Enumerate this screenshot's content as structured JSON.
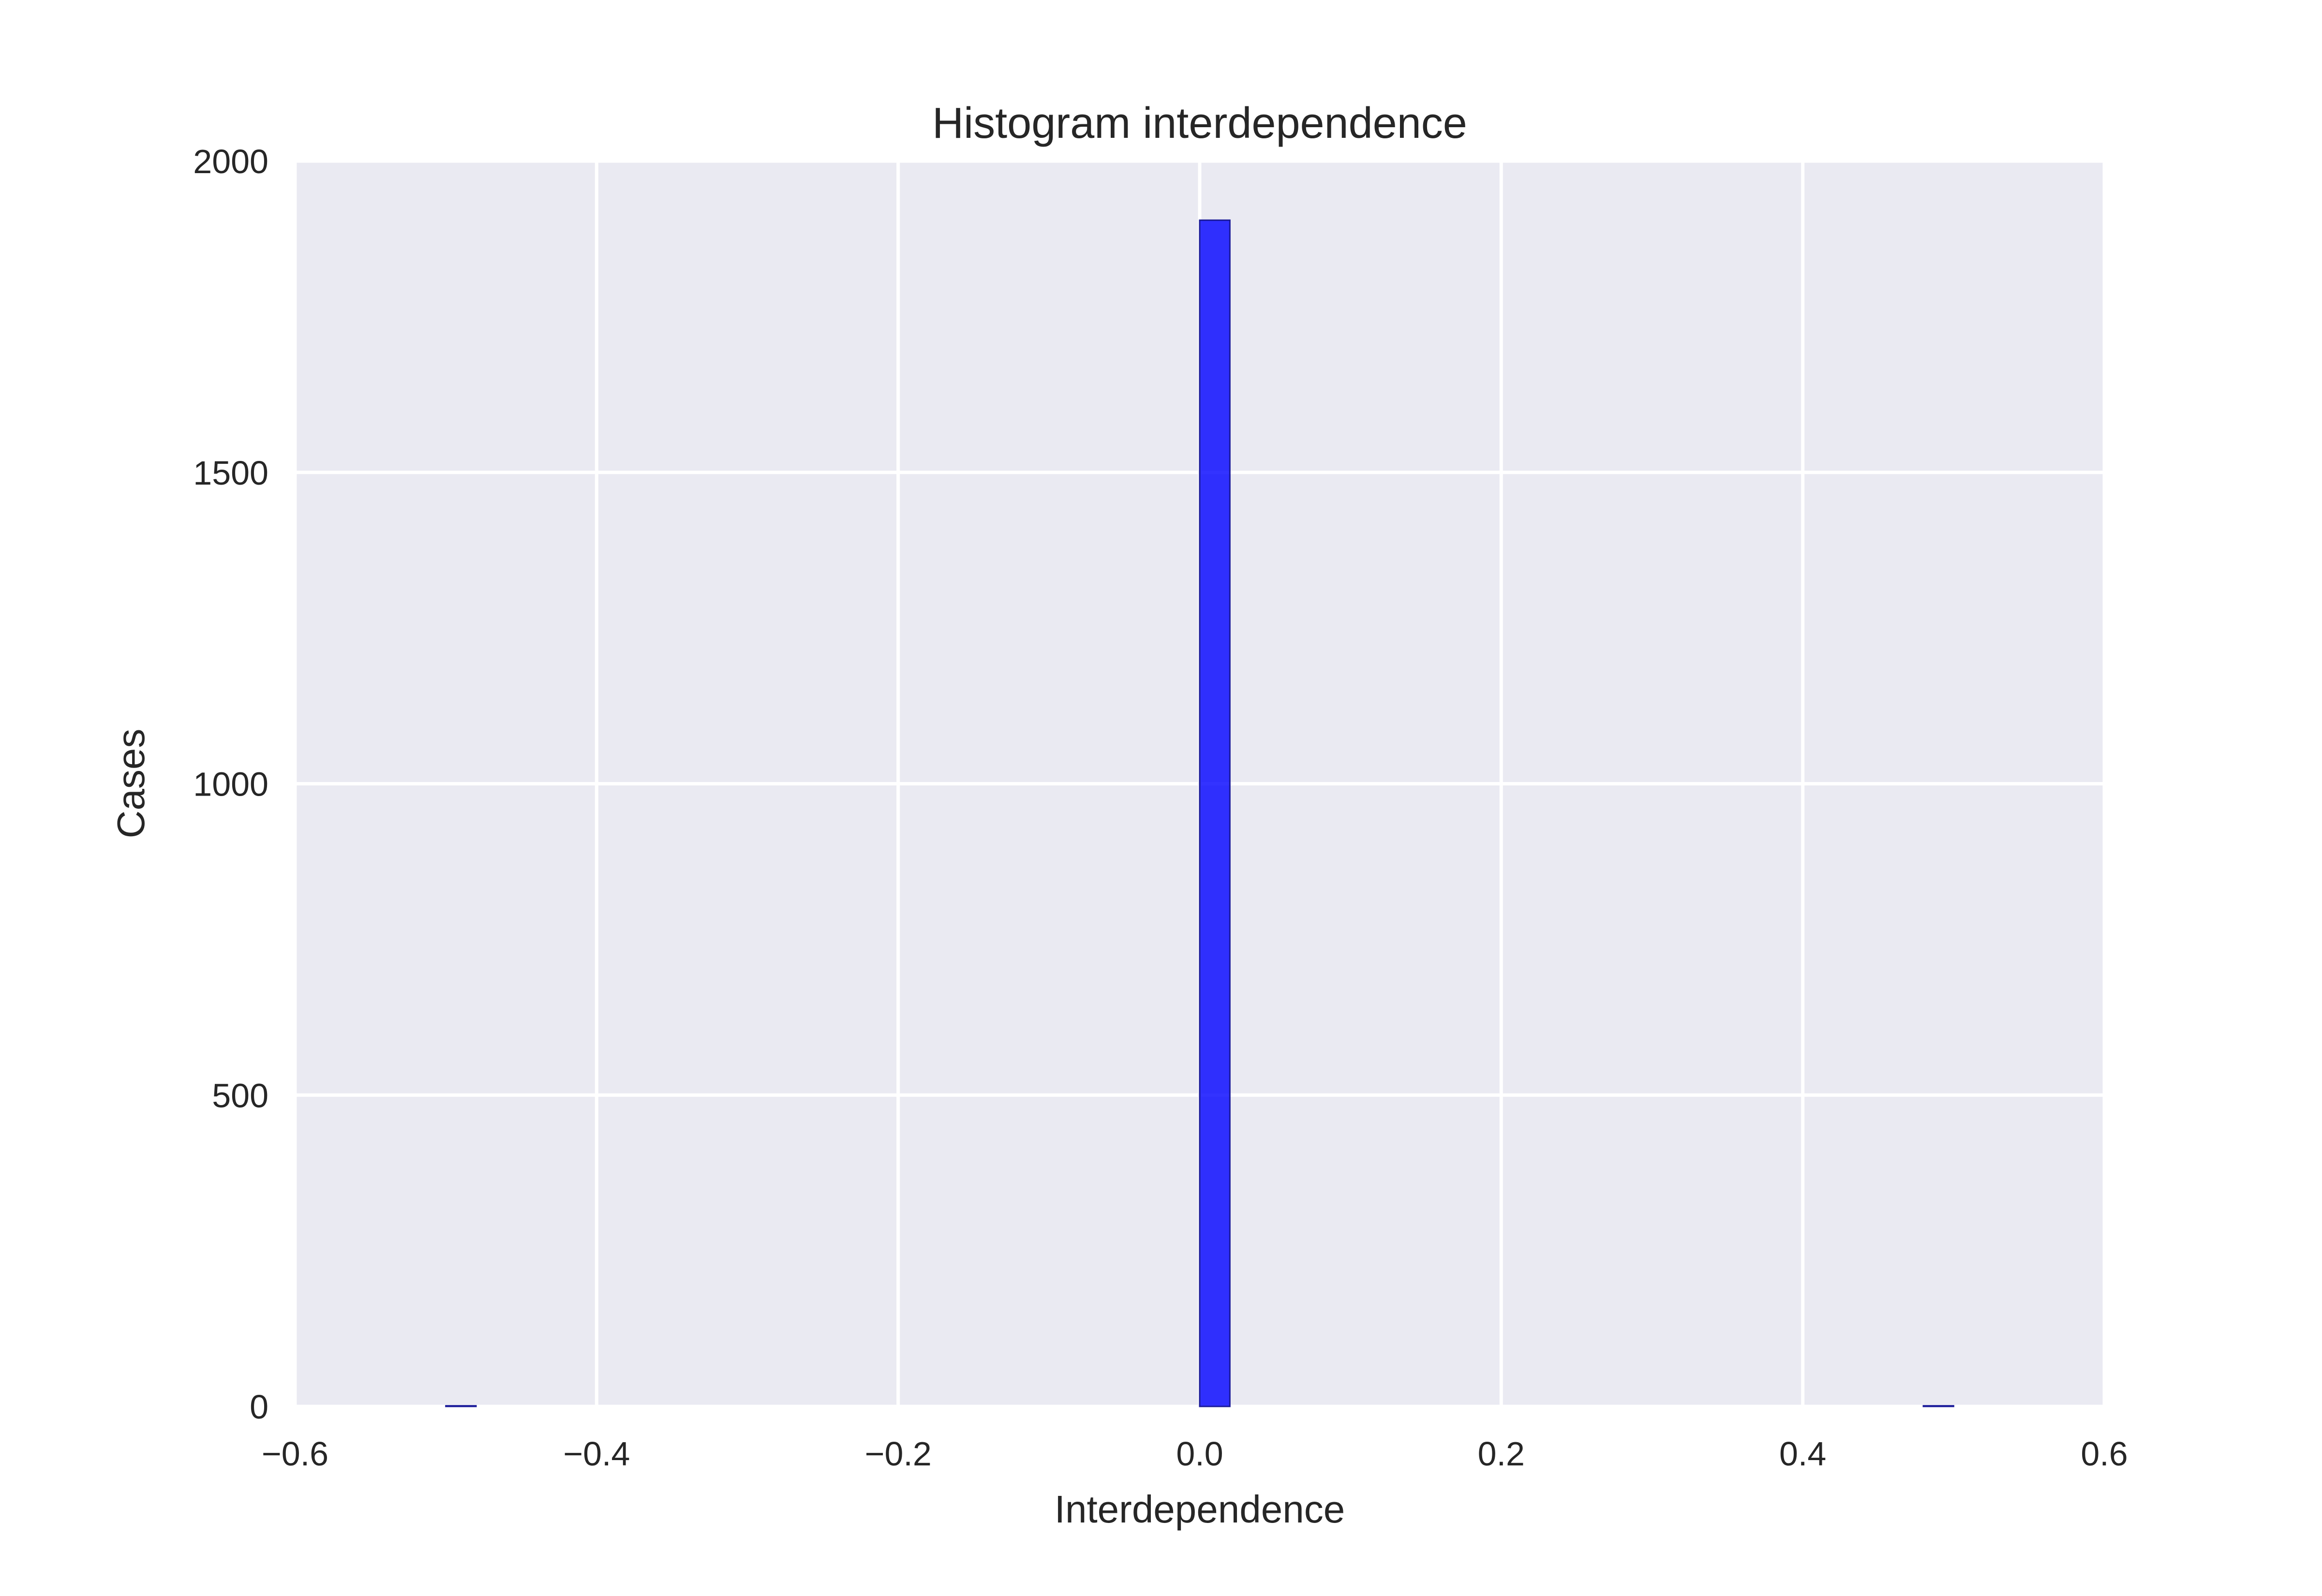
{
  "chart_data": {
    "type": "bar",
    "title": "Histogram interdependence",
    "xlabel": "Interdependence",
    "ylabel": "Cases",
    "xlim": [
      -0.6,
      0.6
    ],
    "ylim": [
      0,
      2000
    ],
    "xticks": [
      -0.6,
      -0.4,
      -0.2,
      0.0,
      0.2,
      0.4,
      0.6
    ],
    "xtick_labels": [
      "−0.6",
      "−0.4",
      "−0.2",
      "0.0",
      "0.2",
      "0.4",
      "0.6"
    ],
    "yticks": [
      0,
      500,
      1000,
      1500,
      2000
    ],
    "ytick_labels": [
      "0",
      "500",
      "1000",
      "1500",
      "2000"
    ],
    "grid": true,
    "background_color": "#EAEAF2",
    "grid_color": "#FFFFFF",
    "bar_color": "#0000FF",
    "bars": [
      {
        "x0": -0.5,
        "x1": -0.48,
        "value": 1
      },
      {
        "x0": 0.0,
        "x1": 0.02,
        "value": 1905
      },
      {
        "x0": 0.48,
        "x1": 0.5,
        "value": 1
      }
    ]
  }
}
